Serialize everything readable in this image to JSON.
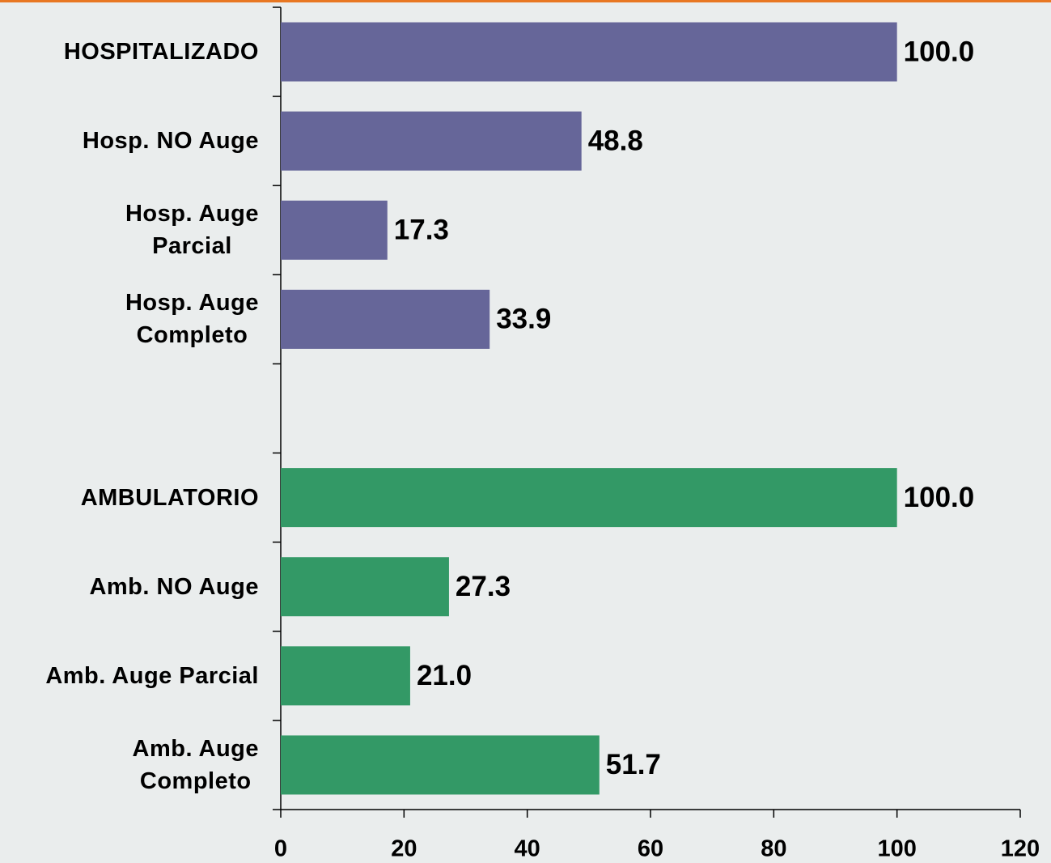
{
  "chart_data": {
    "type": "hbar",
    "categories": [
      "HOSPITALIZADO",
      "Hosp. NO Auge",
      "Hosp. Auge\nParcial",
      "Hosp. Auge\nCompleto",
      null,
      "AMBULATORIO",
      "Amb. NO Auge",
      "Amb. Auge Parcial",
      "Amb. Auge\nCompleto"
    ],
    "values": [
      100,
      48.8,
      17.3,
      33.9,
      null,
      100,
      27.3,
      21.0,
      51.7
    ],
    "value_labels": [
      "100.0",
      "48.8",
      "17.3",
      "33.9",
      null,
      "100.0",
      "27.3",
      "21.0",
      "51.7"
    ],
    "colors": [
      "#666699",
      "#666699",
      "#666699",
      "#666699",
      null,
      "#339966",
      "#339966",
      "#339966",
      "#339966"
    ],
    "xlim": [
      0,
      120
    ],
    "xticks": [
      0,
      20,
      40,
      60,
      80,
      100,
      120
    ]
  }
}
